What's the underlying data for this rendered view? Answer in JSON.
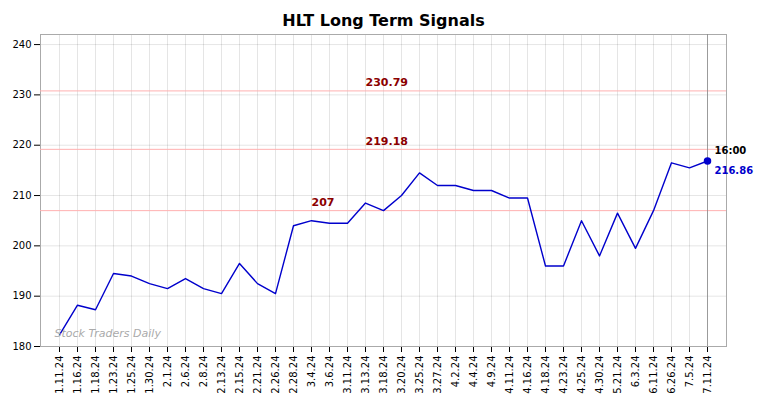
{
  "chart_data": {
    "type": "line",
    "title": "HLT Long Term Signals",
    "categories": [
      "1.11.24",
      "1.16.24",
      "1.18.24",
      "1.23.24",
      "1.25.24",
      "1.30.24",
      "2.1.24",
      "2.6.24",
      "2.8.24",
      "2.13.24",
      "2.15.24",
      "2.21.24",
      "2.26.24",
      "2.28.24",
      "3.4.24",
      "3.6.24",
      "3.11.24",
      "3.13.24",
      "3.18.24",
      "3.20.24",
      "3.25.24",
      "3.27.24",
      "4.2.24",
      "4.4.24",
      "4.9.24",
      "4.11.24",
      "4.16.24",
      "4.18.24",
      "4.23.24",
      "4.25.24",
      "4.30.24",
      "5.21.24",
      "6.3.24",
      "6.11.24",
      "6.26.24",
      "7.5.24",
      "7.11.24"
    ],
    "values": [
      182.3,
      188.2,
      187.3,
      194.5,
      194.0,
      192.5,
      191.5,
      193.5,
      191.5,
      190.5,
      196.5,
      192.5,
      190.5,
      204.0,
      205.0,
      204.5,
      204.5,
      208.5,
      207.0,
      210.0,
      214.5,
      212.0,
      212.0,
      211.0,
      211.0,
      209.5,
      209.5,
      196.0,
      196.0,
      205.0,
      198.0,
      206.5,
      199.5,
      207.0,
      216.5,
      215.5,
      216.86
    ],
    "color": "#0000cc",
    "ylim": [
      180,
      242
    ],
    "yticks": [
      180,
      190,
      200,
      210,
      220,
      230,
      240
    ],
    "grid": true,
    "reference_lines": [
      {
        "y": 230.79,
        "color": "#ffb0b0",
        "label_color": "#8b0000"
      },
      {
        "y": 219.18,
        "color": "#ffb0b0",
        "label_color": "#8b0000"
      },
      {
        "y": 207,
        "color": "#ffb0b0",
        "label_color": "#8b0000"
      }
    ],
    "last_point": {
      "value": 216.86,
      "label": "16:00",
      "marker": "circle"
    },
    "watermark": "Stock Traders Daily"
  }
}
